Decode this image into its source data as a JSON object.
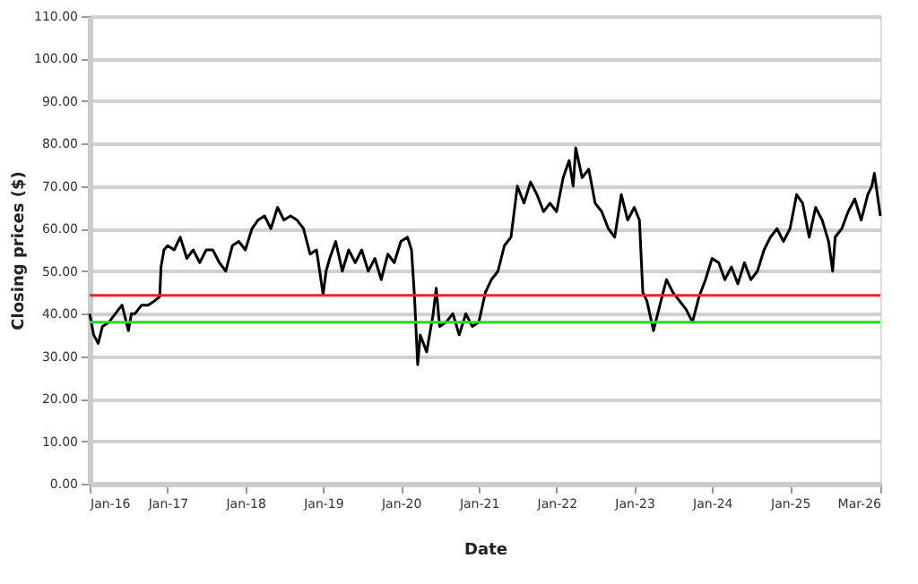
{
  "chart_data": {
    "type": "line",
    "xlabel": "Date",
    "ylabel": "Closing prices ($)",
    "x": [
      "2016-01-01",
      "2016-01-20",
      "2016-02-10",
      "2016-03-01",
      "2016-04-01",
      "2016-05-01",
      "2016-06-01",
      "2016-07-01",
      "2016-07-15",
      "2016-08-01",
      "2016-09-01",
      "2016-10-01",
      "2016-11-01",
      "2016-11-25",
      "2016-12-01",
      "2016-12-15",
      "2017-01-01",
      "2017-02-01",
      "2017-03-01",
      "2017-03-20",
      "2017-04-01",
      "2017-05-01",
      "2017-06-01",
      "2017-07-01",
      "2017-08-01",
      "2017-09-01",
      "2017-10-01",
      "2017-11-01",
      "2017-12-01",
      "2018-01-01",
      "2018-02-01",
      "2018-03-01",
      "2018-04-01",
      "2018-05-01",
      "2018-06-01",
      "2018-07-01",
      "2018-08-01",
      "2018-09-01",
      "2018-10-01",
      "2018-11-01",
      "2018-12-01",
      "2019-01-01",
      "2019-01-15",
      "2019-02-01",
      "2019-03-01",
      "2019-04-01",
      "2019-05-01",
      "2019-06-01",
      "2019-07-01",
      "2019-08-01",
      "2019-09-01",
      "2019-10-01",
      "2019-11-01",
      "2019-12-01",
      "2020-01-01",
      "2020-02-01",
      "2020-02-20",
      "2020-03-05",
      "2020-03-20",
      "2020-04-01",
      "2020-05-01",
      "2020-06-01",
      "2020-06-15",
      "2020-07-01",
      "2020-08-01",
      "2020-09-01",
      "2020-10-01",
      "2020-11-01",
      "2020-12-01",
      "2021-01-01",
      "2021-02-01",
      "2021-03-01",
      "2021-04-01",
      "2021-05-01",
      "2021-06-01",
      "2021-07-01",
      "2021-08-01",
      "2021-09-01",
      "2021-10-01",
      "2021-11-01",
      "2021-12-01",
      "2022-01-01",
      "2022-02-01",
      "2022-03-01",
      "2022-03-20",
      "2022-04-01",
      "2022-05-01",
      "2022-06-01",
      "2022-07-01",
      "2022-08-01",
      "2022-09-01",
      "2022-10-01",
      "2022-11-01",
      "2022-12-01",
      "2023-01-01",
      "2023-01-25",
      "2023-02-10",
      "2023-03-01",
      "2023-04-01",
      "2023-05-01",
      "2023-06-01",
      "2023-07-01",
      "2023-08-01",
      "2023-09-01",
      "2023-10-01",
      "2023-11-01",
      "2023-12-01",
      "2024-01-01",
      "2024-02-01",
      "2024-03-01",
      "2024-04-01",
      "2024-05-01",
      "2024-06-01",
      "2024-07-01",
      "2024-08-01",
      "2024-09-01",
      "2024-10-01",
      "2024-11-01",
      "2024-12-01",
      "2025-01-01",
      "2025-02-01",
      "2025-03-01",
      "2025-04-01",
      "2025-05-01",
      "2025-06-01",
      "2025-07-01",
      "2025-07-20",
      "2025-08-01",
      "2025-09-01",
      "2025-10-01",
      "2025-11-01",
      "2025-12-01",
      "2026-01-01",
      "2026-01-20",
      "2026-02-01",
      "2026-02-15",
      "2026-03-01"
    ],
    "series": [
      {
        "color": "#000000",
        "values": [
          40,
          35,
          33,
          37,
          38,
          40,
          42,
          36,
          40,
          40,
          42,
          42,
          43,
          44,
          51,
          55,
          56,
          55,
          58,
          55,
          53,
          55,
          52,
          55,
          55,
          52,
          50,
          56,
          57,
          55,
          60,
          62,
          63,
          60,
          65,
          62,
          63,
          62,
          60,
          54,
          55,
          44.5,
          50,
          53,
          57,
          50,
          55,
          52,
          55,
          50,
          53,
          48,
          54,
          52,
          57,
          58,
          55,
          44,
          28,
          35,
          31,
          40,
          46,
          37,
          38,
          40,
          35,
          40,
          37,
          38,
          45,
          48,
          50,
          56,
          58,
          70,
          66,
          71,
          68,
          64,
          66,
          64,
          72,
          76,
          70,
          79,
          72,
          74,
          66,
          64,
          60,
          58,
          68,
          62,
          65,
          62,
          45,
          43,
          36,
          42,
          48,
          45,
          43,
          41,
          38,
          44,
          48,
          53,
          52,
          48,
          51,
          47,
          52,
          48,
          50,
          55,
          58,
          60,
          57,
          60,
          68,
          66,
          58,
          65,
          62,
          57,
          50,
          58,
          60,
          64,
          67,
          62,
          68,
          70,
          73,
          68,
          63
        ]
      }
    ],
    "xlim": [
      "2016-01-01",
      "2026-03-01"
    ],
    "xticks": [
      {
        "value": "2016-01-01",
        "label": "Jan-16"
      },
      {
        "value": "2017-01-01",
        "label": "Jan-17"
      },
      {
        "value": "2018-01-01",
        "label": "Jan-18"
      },
      {
        "value": "2019-01-01",
        "label": "Jan-19"
      },
      {
        "value": "2020-01-01",
        "label": "Jan-20"
      },
      {
        "value": "2021-01-01",
        "label": "Jan-21"
      },
      {
        "value": "2022-01-01",
        "label": "Jan-22"
      },
      {
        "value": "2023-01-01",
        "label": "Jan-23"
      },
      {
        "value": "2024-01-01",
        "label": "Jan-24"
      },
      {
        "value": "2025-01-01",
        "label": "Jan-25"
      },
      {
        "value": "2026-03-01",
        "label": "Mar-26"
      }
    ],
    "ylim": [
      0,
      110
    ],
    "yticks": [
      {
        "value": 0,
        "label": "0.00"
      },
      {
        "value": 10,
        "label": "10.00"
      },
      {
        "value": 20,
        "label": "20.00"
      },
      {
        "value": 30,
        "label": "30.00"
      },
      {
        "value": 40,
        "label": "40.00"
      },
      {
        "value": 50,
        "label": "50.00"
      },
      {
        "value": 60,
        "label": "60.00"
      },
      {
        "value": 70,
        "label": "70.00"
      },
      {
        "value": 80,
        "label": "80.00"
      },
      {
        "value": 90,
        "label": "90.00"
      },
      {
        "value": 100,
        "label": "100.00"
      },
      {
        "value": 110,
        "label": "110.00"
      }
    ],
    "ref_lines": [
      {
        "axis": "y",
        "value": 44.3,
        "color": "#e8262a"
      },
      {
        "axis": "y",
        "value": 38,
        "color": "#22dd22"
      }
    ],
    "grid": "y"
  }
}
